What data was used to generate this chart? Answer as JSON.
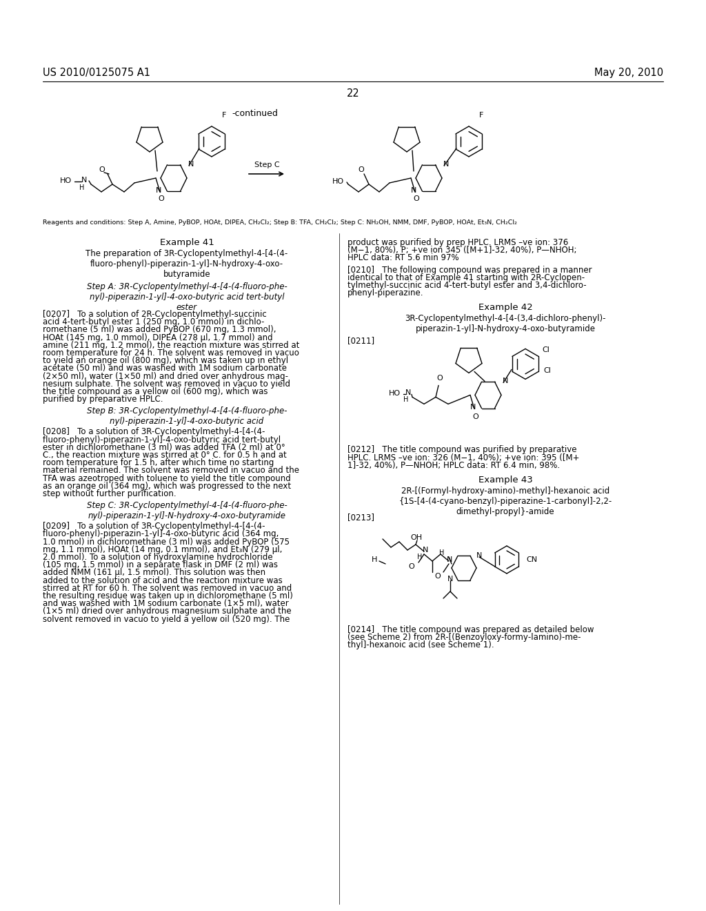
{
  "bg_color": "#ffffff",
  "header_left": "US 2010/0125075 A1",
  "header_right": "May 20, 2010",
  "page_number": "22",
  "continued_label": "-continued",
  "reagents_line": "Reagents and conditions: Step A, Amine, PyBOP, HOAt, DIPEA, CH₂Cl₂; Step B: TFA, CH₂Cl₂; Step C: NH₂OH, NMM, DMF, PyBOP, HOAt, Et₃N, CH₂Cl₂",
  "step_c_label": "Step C",
  "example41_title": "Example 41",
  "example41_subtitle": "The preparation of 3R-Cyclopentylmethyl-4-[4-(4-\nfluoro-phenyl)-piperazin-1-yl]-N-hydroxy-4-oxo-\nbutyramide",
  "stepA_title": "Step A: 3R-Cyclopentylmethyl-4-[4-(4-fluoro-phe-\nnyl)-piperazin-1-yl]-4-oxo-butyric acid tert-butyl\nester",
  "p0207": "[0207]   To a solution of 2R-Cyclopentylmethyl-succinic\nacid 4-tert-butyl ester 1 (250 mg, 1.0 mmol) in dichlo-\nromethane (5 ml) was added PyBOP (670 mg, 1.3 mmol),\nHOAt (145 mg, 1.0 mmol), DIPEA (278 μl, 1.7 mmol) and\namine (211 mg, 1.2 mmol), the reaction mixture was stirred at\nroom temperature for 24 h. The solvent was removed in vacuo\nto yield an orange oil (800 mg), which was taken up in ethyl\nacetate (50 ml) and was washed with 1M sodium carbonate\n(2×50 ml), water (1×50 ml) and dried over anhydrous mag-\nnesium sulphate. The solvent was removed in vacuo to yield\nthe title compound as a yellow oil (600 mg), which was\npurified by preparative HPLC.",
  "stepB_title": "Step B: 3R-Cyclopentylmethyl-4-[4-(4-fluoro-phe-\nnyl)-piperazin-1-yl]-4-oxo-butyric acid",
  "p0208": "[0208]   To a solution of 3R-Cyclopentylmethyl-4-[4-(4-\nfluoro-phenyl)-piperazin-1-yl]-4-oxo-butyric acid tert-butyl\nester in dichloromethane (3 ml) was added TFA (2 ml) at 0°\nC., the reaction mixture was stirred at 0° C. for 0.5 h and at\nroom temperature for 1.5 h, after which time no starting\nmaterial remained. The solvent was removed in vacuo and the\nTFA was azeotroped with toluene to yield the title compound\nas an orange oil (364 mg), which was progressed to the next\nstep without further purification.",
  "stepC_title": "Step C: 3R-Cyclopentylmethyl-4-[4-(4-fluoro-phe-\nnyl)-piperazin-1-yl]-N-hydroxy-4-oxo-butyramide",
  "p0209": "[0209]   To a solution of 3R-Cyclopentylmethyl-4-[4-(4-\nfluoro-phenyl)-piperazin-1-yl]-4-oxo-butyric acid (364 mg,\n1.0 mmol) in dichloromethane (3 ml) was added PyBOP (575\nmg, 1.1 mmol), HOAt (14 mg, 0.1 mmol), and Et₃N (279 μl,\n2.0 mmol). To a solution of hydroxylamine hydrochloride\n(105 mg, 1.5 mmol) in a separate flask in DMF (2 ml) was\nadded NMM (161 μl, 1.5 mmol). This solution was then\nadded to the solution of acid and the reaction mixture was\nstirred at RT for 60 h. The solvent was removed in vacuo and\nthe resulting residue was taken up in dichloromethane (5 ml)\nand was washed with 1M sodium carbonate (1×5 ml), water\n(1×5 ml) dried over anhydrous magnesium sulphate and the\nsolvent removed in vacuo to yield a yellow oil (520 mg). The",
  "right_p0209_cont": "product was purified by prep HPLC. LRMS –ve ion: 376\n(M−1, 80%), P; +ve ion 345 ([M+1]-32, 40%), P—NHOH;\nHPLC data: RT 5.6 min 97%",
  "p0210": "[0210]   The following compound was prepared in a manner\nidentical to that of Example 41 starting with 2R-Cyclopen-\ntylmethyl-succinic acid 4-tert-butyl ester and 3,4-dichloro-\nphenyl-piperazine.",
  "example42_title": "Example 42",
  "example42_subtitle": "3R-Cyclopentylmethyl-4-[4-(3,4-dichloro-phenyl)-\npiperazin-1-yl]-N-hydroxy-4-oxo-butyramide",
  "p0211": "[0211]",
  "p0212": "[0212]   The title compound was purified by preparative\nHPLC. LRMS –ve ion: 326 (M−1, 40%); +ve ion: 395 ([M+\n1]-32, 40%), P—NHOH; HPLC data: RT 6.4 min, 98%.",
  "example43_title": "Example 43",
  "example43_subtitle": "2R-[(Formyl-hydroxy-amino)-methyl]-hexanoic acid\n{1S-[4-(4-cyano-benzyl)-piperazine-1-carbonyl]-2,2-\ndimethyl-propyl}-amide",
  "p0213": "[0213]",
  "p0214": "[0214]   The title compound was prepared as detailed below\n(see Scheme 2) from 2R-[(Benzoyloxy-formy­lamino)-me-\nthyl]-hexanoic acid (see Scheme 1).",
  "font_size_header": 10.5,
  "font_size_body": 8.5,
  "font_size_title": 9.5,
  "font_size_page_num": 10.5
}
